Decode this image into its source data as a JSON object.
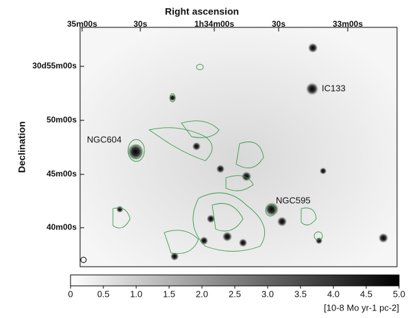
{
  "chart_data": {
    "type": "image",
    "xlabel": "Right  ascension",
    "ylabel": "Declination",
    "xtick_labels": [
      "35m00s",
      "30s",
      "1h34m00s",
      "30s",
      "33m00s"
    ],
    "ytick_labels": [
      "30d55m00s",
      "50m00s",
      "45m00s",
      "40m00s"
    ],
    "annotations": [
      "NGC604",
      "IC133",
      "NGC595"
    ],
    "colorbar": {
      "lim": [
        0,
        5
      ],
      "ticks": [
        0,
        {
          "value": 0.5,
          "label": "0.5"
        },
        {
          "value": 1,
          "label": "1.0"
        },
        {
          "value": 1.5,
          "label": "1.5"
        },
        {
          "value": 2,
          "label": "2.0"
        },
        {
          "value": 2.5,
          "label": "2.5"
        },
        {
          "value": 3,
          "label": "3.0"
        },
        {
          "value": 3.5,
          "label": "3.5"
        },
        {
          "value": 4,
          "label": "4.0"
        },
        {
          "value": 4.5,
          "label": "4.5"
        },
        {
          "value": 5,
          "label": "5.0"
        }
      ],
      "label": "[10-8 Mo yr-1 pc-2]"
    }
  }
}
